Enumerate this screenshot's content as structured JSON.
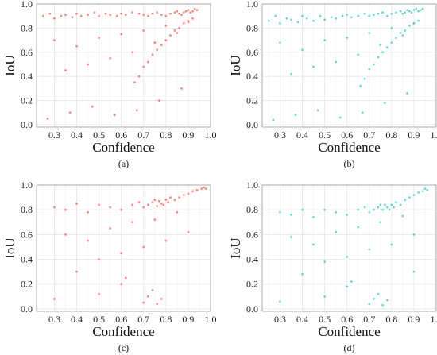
{
  "chart_data": [
    {
      "type": "scatter",
      "panel": "a",
      "caption": "(a)",
      "xlabel": "Confidence",
      "ylabel": "IoU",
      "xlim": [
        0.22,
        1.0
      ],
      "ylim": [
        -0.02,
        1.0
      ],
      "xticks": [
        "0.3",
        "0.4",
        "0.5",
        "0.6",
        "0.7",
        "0.8",
        "0.9",
        "1.0"
      ],
      "yticks": [
        "0.0",
        "0.2",
        "0.4",
        "0.6",
        "0.8",
        "1.0"
      ],
      "grid": true,
      "color": "#F8766D",
      "x": [
        0.25,
        0.28,
        0.3,
        0.33,
        0.35,
        0.38,
        0.4,
        0.42,
        0.45,
        0.48,
        0.5,
        0.53,
        0.55,
        0.58,
        0.6,
        0.62,
        0.65,
        0.68,
        0.7,
        0.72,
        0.74,
        0.76,
        0.78,
        0.8,
        0.82,
        0.84,
        0.85,
        0.86,
        0.87,
        0.88,
        0.89,
        0.9,
        0.91,
        0.92,
        0.93,
        0.94,
        0.3,
        0.4,
        0.5,
        0.6,
        0.7,
        0.8,
        0.9,
        0.35,
        0.45,
        0.55,
        0.65,
        0.75,
        0.85,
        0.27,
        0.37,
        0.47,
        0.57,
        0.67,
        0.77,
        0.87,
        0.92,
        0.9,
        0.88,
        0.86,
        0.84,
        0.82,
        0.8,
        0.78,
        0.76,
        0.74,
        0.72,
        0.7,
        0.68,
        0.66
      ],
      "y": [
        0.9,
        0.92,
        0.88,
        0.9,
        0.91,
        0.89,
        0.92,
        0.9,
        0.91,
        0.93,
        0.9,
        0.92,
        0.91,
        0.9,
        0.92,
        0.91,
        0.93,
        0.92,
        0.91,
        0.9,
        0.92,
        0.93,
        0.91,
        0.9,
        0.92,
        0.93,
        0.94,
        0.92,
        0.91,
        0.93,
        0.94,
        0.95,
        0.93,
        0.94,
        0.96,
        0.95,
        0.7,
        0.65,
        0.72,
        0.75,
        0.78,
        0.82,
        0.85,
        0.45,
        0.5,
        0.55,
        0.6,
        0.68,
        0.76,
        0.05,
        0.1,
        0.15,
        0.08,
        0.12,
        0.2,
        0.3,
        0.88,
        0.86,
        0.84,
        0.8,
        0.78,
        0.74,
        0.7,
        0.66,
        0.62,
        0.58,
        0.52,
        0.48,
        0.4,
        0.35
      ]
    },
    {
      "type": "scatter",
      "panel": "b",
      "caption": "(b)",
      "xlabel": "Confidence",
      "ylabel": "IoU",
      "xlim": [
        0.22,
        1.0
      ],
      "ylim": [
        -0.02,
        1.0
      ],
      "xticks": [
        "0.3",
        "0.4",
        "0.5",
        "0.6",
        "0.7",
        "0.8",
        "0.9",
        "1.0"
      ],
      "yticks": [
        "0.0",
        "0.2",
        "0.4",
        "0.6",
        "0.8",
        "1.0"
      ],
      "grid": true,
      "color": "#5BCFC8",
      "x": [
        0.25,
        0.28,
        0.3,
        0.33,
        0.35,
        0.38,
        0.4,
        0.42,
        0.45,
        0.48,
        0.5,
        0.53,
        0.55,
        0.58,
        0.6,
        0.62,
        0.65,
        0.68,
        0.7,
        0.72,
        0.74,
        0.76,
        0.78,
        0.8,
        0.82,
        0.84,
        0.85,
        0.86,
        0.87,
        0.88,
        0.89,
        0.9,
        0.91,
        0.92,
        0.93,
        0.94,
        0.3,
        0.4,
        0.5,
        0.6,
        0.7,
        0.8,
        0.9,
        0.35,
        0.45,
        0.55,
        0.65,
        0.75,
        0.85,
        0.27,
        0.37,
        0.47,
        0.57,
        0.67,
        0.77,
        0.87,
        0.92,
        0.9,
        0.88,
        0.86,
        0.84,
        0.82,
        0.8,
        0.78,
        0.76,
        0.74,
        0.72,
        0.7,
        0.68,
        0.66
      ],
      "y": [
        0.86,
        0.9,
        0.84,
        0.88,
        0.87,
        0.85,
        0.9,
        0.88,
        0.86,
        0.9,
        0.87,
        0.89,
        0.88,
        0.9,
        0.91,
        0.89,
        0.9,
        0.92,
        0.9,
        0.91,
        0.92,
        0.93,
        0.9,
        0.92,
        0.93,
        0.94,
        0.92,
        0.93,
        0.95,
        0.94,
        0.93,
        0.95,
        0.96,
        0.94,
        0.95,
        0.96,
        0.68,
        0.62,
        0.7,
        0.72,
        0.76,
        0.8,
        0.84,
        0.42,
        0.48,
        0.52,
        0.58,
        0.66,
        0.74,
        0.04,
        0.08,
        0.12,
        0.06,
        0.1,
        0.18,
        0.26,
        0.86,
        0.84,
        0.82,
        0.78,
        0.76,
        0.72,
        0.68,
        0.64,
        0.6,
        0.56,
        0.5,
        0.46,
        0.38,
        0.32
      ]
    },
    {
      "type": "scatter",
      "panel": "c",
      "caption": "(c)",
      "xlabel": "Confidence",
      "ylabel": "IoU",
      "xlim": [
        0.22,
        1.0
      ],
      "ylim": [
        -0.02,
        1.0
      ],
      "xticks": [
        "0.3",
        "0.4",
        "0.5",
        "0.6",
        "0.7",
        "0.8",
        "0.9",
        "1.0"
      ],
      "yticks": [
        "0.0",
        "0.2",
        "0.4",
        "0.6",
        "0.8",
        "1.0"
      ],
      "grid": true,
      "color": "#F8766D",
      "x": [
        0.3,
        0.35,
        0.4,
        0.45,
        0.5,
        0.55,
        0.6,
        0.65,
        0.68,
        0.7,
        0.72,
        0.74,
        0.75,
        0.76,
        0.77,
        0.78,
        0.79,
        0.8,
        0.81,
        0.82,
        0.84,
        0.86,
        0.88,
        0.9,
        0.92,
        0.94,
        0.96,
        0.97,
        0.98,
        0.35,
        0.45,
        0.55,
        0.65,
        0.75,
        0.85,
        0.4,
        0.5,
        0.6,
        0.7,
        0.8,
        0.9,
        0.3,
        0.5,
        0.7,
        0.72,
        0.74,
        0.76,
        0.78,
        0.6,
        0.62
      ],
      "y": [
        0.82,
        0.8,
        0.85,
        0.78,
        0.84,
        0.82,
        0.8,
        0.84,
        0.86,
        0.82,
        0.84,
        0.86,
        0.88,
        0.83,
        0.87,
        0.85,
        0.84,
        0.88,
        0.86,
        0.9,
        0.88,
        0.9,
        0.92,
        0.93,
        0.95,
        0.96,
        0.97,
        0.98,
        0.97,
        0.6,
        0.55,
        0.65,
        0.7,
        0.72,
        0.78,
        0.3,
        0.4,
        0.45,
        0.5,
        0.55,
        0.62,
        0.08,
        0.12,
        0.05,
        0.1,
        0.15,
        0.04,
        0.08,
        0.2,
        0.25
      ]
    },
    {
      "type": "scatter",
      "panel": "d",
      "caption": "(d)",
      "xlabel": "Confidence",
      "ylabel": "IoU",
      "xlim": [
        0.22,
        1.0
      ],
      "ylim": [
        -0.02,
        1.0
      ],
      "xticks": [
        "0.3",
        "0.4",
        "0.5",
        "0.6",
        "0.7",
        "0.8",
        "0.9",
        "1.0"
      ],
      "yticks": [
        "0.0",
        "0.2",
        "0.4",
        "0.6",
        "0.8",
        "1.0"
      ],
      "grid": true,
      "color": "#5BCFC8",
      "x": [
        0.3,
        0.35,
        0.4,
        0.45,
        0.5,
        0.55,
        0.6,
        0.65,
        0.68,
        0.7,
        0.72,
        0.74,
        0.75,
        0.76,
        0.77,
        0.78,
        0.79,
        0.8,
        0.81,
        0.82,
        0.84,
        0.86,
        0.88,
        0.9,
        0.92,
        0.94,
        0.95,
        0.96,
        0.35,
        0.45,
        0.55,
        0.65,
        0.75,
        0.85,
        0.4,
        0.5,
        0.6,
        0.7,
        0.8,
        0.9,
        0.3,
        0.5,
        0.7,
        0.72,
        0.74,
        0.76,
        0.78,
        0.6,
        0.62,
        0.9
      ],
      "y": [
        0.78,
        0.76,
        0.8,
        0.74,
        0.8,
        0.78,
        0.76,
        0.8,
        0.82,
        0.78,
        0.8,
        0.82,
        0.84,
        0.8,
        0.84,
        0.82,
        0.8,
        0.84,
        0.82,
        0.86,
        0.84,
        0.88,
        0.9,
        0.92,
        0.94,
        0.95,
        0.97,
        0.96,
        0.58,
        0.52,
        0.62,
        0.66,
        0.7,
        0.75,
        0.28,
        0.38,
        0.42,
        0.48,
        0.52,
        0.6,
        0.06,
        0.1,
        0.04,
        0.08,
        0.12,
        0.03,
        0.07,
        0.18,
        0.22,
        0.3
      ]
    }
  ]
}
